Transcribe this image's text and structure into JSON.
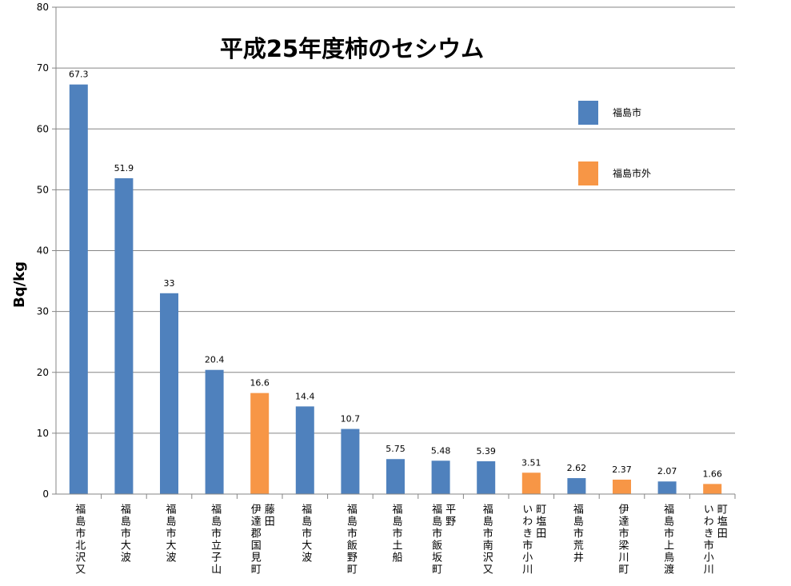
{
  "chart_data": {
    "type": "bar",
    "title": "平成25年度柿のセシウム",
    "ylabel": "Bq/kg",
    "ylim": [
      0,
      80
    ],
    "yticks": [
      0,
      10,
      20,
      30,
      40,
      50,
      60,
      70,
      80
    ],
    "grid": true,
    "legend_position": "right",
    "series": [
      {
        "name": "福島市",
        "color": "#4f81bd"
      },
      {
        "name": "福島市外",
        "color": "#f79646"
      }
    ],
    "categories": [
      {
        "label": "福島市北沢又",
        "lines": [
          "福島市北沢又"
        ],
        "value": 67.3,
        "value_label": "67.3",
        "series": 0
      },
      {
        "label": "福島市大波",
        "lines": [
          "福島市大波"
        ],
        "value": 51.9,
        "value_label": "51.9",
        "series": 0
      },
      {
        "label": "福島市大波",
        "lines": [
          "福島市大波"
        ],
        "value": 33,
        "value_label": "33",
        "series": 0
      },
      {
        "label": "福島市立子山",
        "lines": [
          "福島市立子山"
        ],
        "value": 20.4,
        "value_label": "20.4",
        "series": 0
      },
      {
        "label": "伊達郡国見町藤田",
        "lines": [
          "伊達郡国見町",
          "藤田"
        ],
        "value": 16.6,
        "value_label": "16.6",
        "series": 1
      },
      {
        "label": "福島市大波",
        "lines": [
          "福島市大波"
        ],
        "value": 14.4,
        "value_label": "14.4",
        "series": 0
      },
      {
        "label": "福島市飯野町",
        "lines": [
          "福島市飯野町"
        ],
        "value": 10.7,
        "value_label": "10.7",
        "series": 0
      },
      {
        "label": "福島市土船",
        "lines": [
          "福島市土船"
        ],
        "value": 5.75,
        "value_label": "5.75",
        "series": 0
      },
      {
        "label": "福島市飯坂町平野",
        "lines": [
          "福島市飯坂町",
          "平野"
        ],
        "value": 5.48,
        "value_label": "5.48",
        "series": 0
      },
      {
        "label": "福島市南沢又",
        "lines": [
          "福島市南沢又"
        ],
        "value": 5.39,
        "value_label": "5.39",
        "series": 0
      },
      {
        "label": "いわき市小川町塩田",
        "lines": [
          "いわき市小川",
          "町塩田"
        ],
        "value": 3.51,
        "value_label": "3.51",
        "series": 1
      },
      {
        "label": "福島市荒井",
        "lines": [
          "福島市荒井"
        ],
        "value": 2.62,
        "value_label": "2.62",
        "series": 0
      },
      {
        "label": "伊達市梁川町",
        "lines": [
          "伊達市梁川町"
        ],
        "value": 2.37,
        "value_label": "2.37",
        "series": 1
      },
      {
        "label": "福島市上鳥渡",
        "lines": [
          "福島市上鳥渡"
        ],
        "value": 2.07,
        "value_label": "2.07",
        "series": 0
      },
      {
        "label": "いわき市小川町塩田",
        "lines": [
          "いわき市小川",
          "町塩田"
        ],
        "value": 1.66,
        "value_label": "1.66",
        "series": 1
      }
    ]
  }
}
